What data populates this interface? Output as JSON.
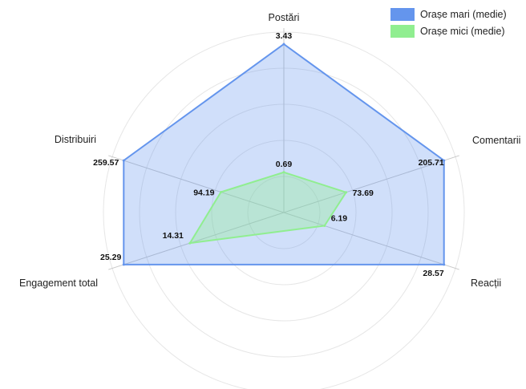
{
  "chart_data": {
    "type": "radar",
    "axes": [
      "Postări",
      "Comentarii",
      "Reacții",
      "Engagement total",
      "Distribuiri"
    ],
    "series": [
      {
        "name": "Orașe mari (medie)",
        "color": "#6495ed",
        "fill": "rgba(100,149,237,0.30)",
        "values": [
          3.43,
          205.71,
          28.57,
          25.29,
          259.57
        ],
        "labels": [
          "3.43",
          "205.71",
          "28.57",
          "25.29",
          "259.57"
        ]
      },
      {
        "name": "Orașe mici (medie)",
        "color": "#90ee90",
        "fill": "rgba(144,238,144,0.35)",
        "values": [
          0.69,
          73.69,
          6.19,
          14.31,
          94.19
        ],
        "labels": [
          "0.69",
          "73.69",
          "6.19",
          "14.31",
          "94.19"
        ]
      }
    ],
    "grid": true,
    "legend": "top-right"
  }
}
